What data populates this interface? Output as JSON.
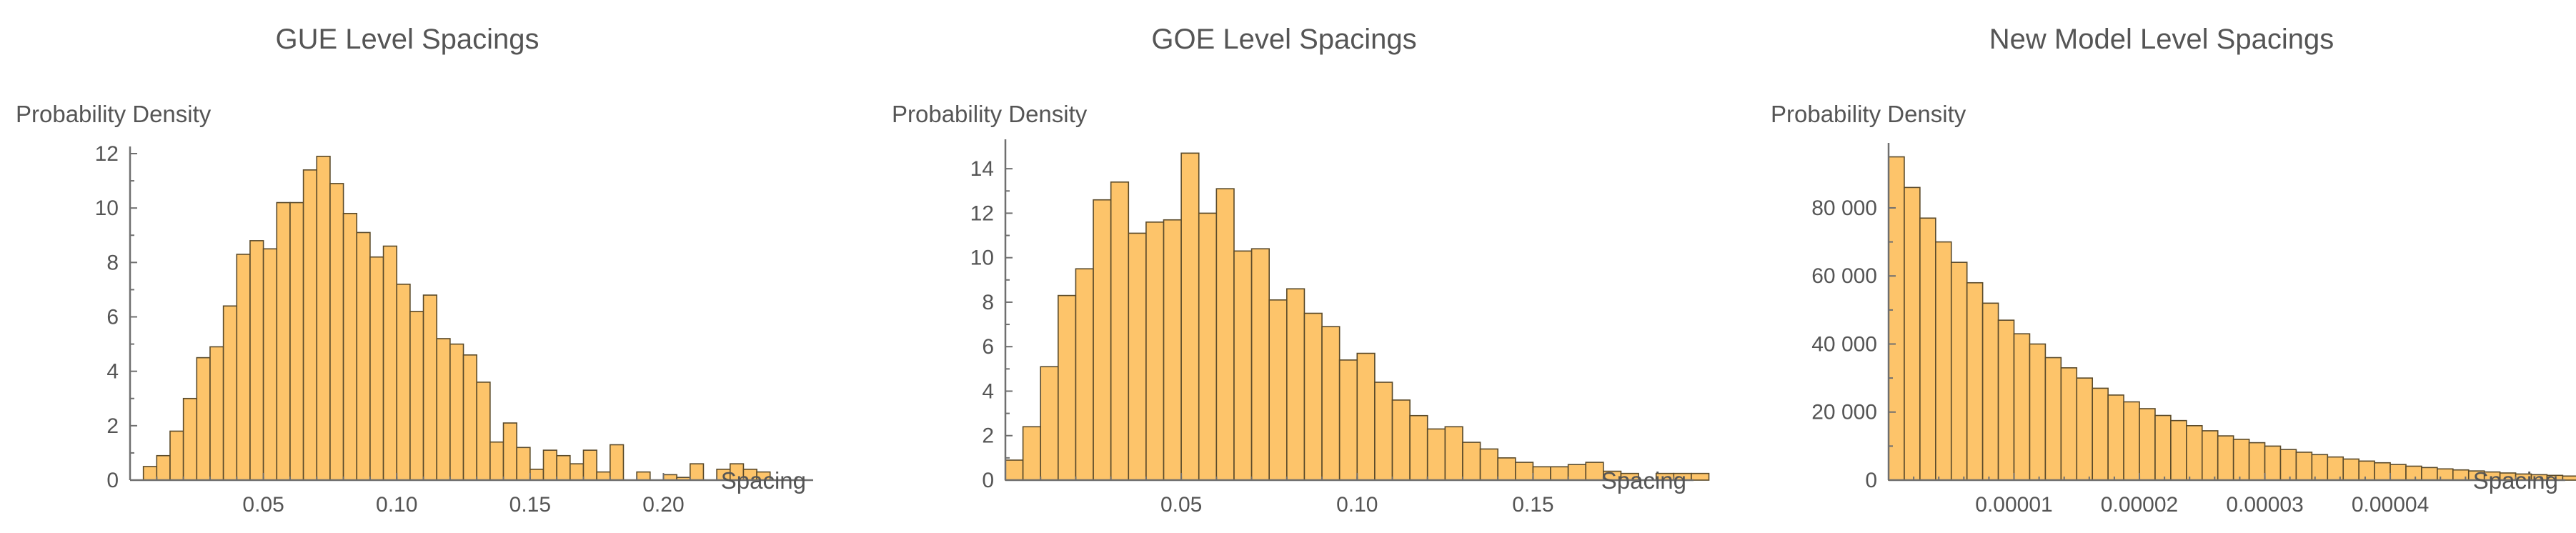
{
  "chart_data": [
    {
      "type": "histogram",
      "title": "GUE Level Spacings",
      "xlabel": "Spacing",
      "ylabel": "Probability Density",
      "xlim": [
        0,
        0.254
      ],
      "ylim": [
        0,
        12
      ],
      "x_ticks": [
        0.05,
        0.1,
        0.15,
        0.2
      ],
      "x_tick_labels": [
        "0.05",
        "0.10",
        "0.15",
        "0.20"
      ],
      "y_ticks": [
        0,
        2,
        4,
        6,
        8,
        10,
        12
      ],
      "y_tick_labels": [
        "0",
        "2",
        "4",
        "6",
        "8",
        "10",
        "12"
      ],
      "bin_width": 0.005,
      "bin_start": 0.005,
      "values": [
        0.5,
        0.9,
        1.8,
        3.0,
        4.5,
        4.9,
        6.4,
        8.3,
        8.8,
        8.5,
        10.2,
        10.2,
        11.4,
        11.9,
        10.9,
        9.8,
        9.1,
        8.2,
        8.6,
        7.2,
        6.2,
        6.8,
        5.2,
        5.0,
        4.6,
        3.6,
        1.4,
        2.1,
        1.2,
        0.4,
        1.1,
        0.9,
        0.6,
        1.1,
        0.3,
        1.3,
        0.0,
        0.3,
        0.0,
        0.2,
        0.1,
        0.6,
        0.0,
        0.4,
        0.6,
        0.4,
        0.3,
        0.0,
        0.0,
        0.0
      ]
    },
    {
      "type": "histogram",
      "title": "GOE Level Spacings",
      "xlabel": "Spacing",
      "ylabel": "Probability Density",
      "xlim": [
        0,
        0.194
      ],
      "ylim": [
        0,
        15
      ],
      "x_ticks": [
        0.05,
        0.1,
        0.15
      ],
      "x_tick_labels": [
        "0.05",
        "0.10",
        "0.15"
      ],
      "y_ticks": [
        0,
        2,
        4,
        6,
        8,
        10,
        12,
        14
      ],
      "y_tick_labels": [
        "0",
        "2",
        "4",
        "6",
        "8",
        "10",
        "12",
        "14"
      ],
      "bin_width": 0.005,
      "bin_start": 0,
      "values": [
        0.9,
        2.4,
        5.1,
        8.3,
        9.5,
        12.6,
        13.4,
        11.1,
        11.6,
        11.7,
        14.7,
        12.0,
        13.1,
        10.3,
        10.4,
        8.1,
        8.6,
        7.5,
        6.9,
        5.4,
        5.7,
        4.4,
        3.6,
        2.9,
        2.3,
        2.4,
        1.7,
        1.4,
        1.0,
        0.8,
        0.6,
        0.6,
        0.7,
        0.8,
        0.4,
        0.3,
        0.0,
        0.3,
        0.3,
        0.3,
        0.0,
        0.0
      ]
    },
    {
      "type": "histogram",
      "title": "New Model Level Spacings",
      "xlabel": "Spacing",
      "ylabel": "Probability Density",
      "xlim": [
        0,
        5.35e-05
      ],
      "ylim": [
        0,
        97000
      ],
      "x_ticks": [
        1e-05,
        2e-05,
        3e-05,
        4e-05
      ],
      "x_tick_labels": [
        "0.00001",
        "0.00002",
        "0.00003",
        "0.00004"
      ],
      "y_ticks": [
        0,
        20000,
        40000,
        60000,
        80000
      ],
      "y_tick_labels": [
        "0",
        "20 000",
        "40 000",
        "60 000",
        "80 000"
      ],
      "bin_width": 1.25e-06,
      "bin_start": 0,
      "values": [
        95000,
        86000,
        77000,
        70000,
        64000,
        58000,
        52000,
        47000,
        43000,
        40000,
        36000,
        33000,
        30000,
        27000,
        25000,
        23000,
        21000,
        19000,
        17500,
        16000,
        14500,
        13000,
        12000,
        11000,
        10000,
        9000,
        8200,
        7500,
        6800,
        6200,
        5600,
        5100,
        4600,
        4100,
        3700,
        3300,
        3000,
        2700,
        2400,
        2100,
        1800,
        1600,
        1400,
        1200
      ]
    }
  ],
  "colors": {
    "bar_fill": "#fdc46a",
    "bar_edge": "#5a4a2a",
    "axis": "#6f6f6f",
    "text": "#555555"
  }
}
